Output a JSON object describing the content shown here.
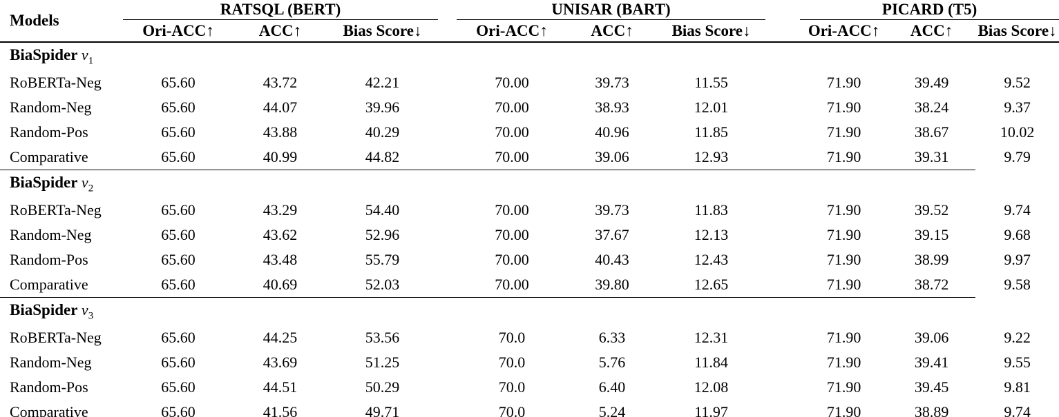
{
  "table": {
    "models_header": "Models",
    "groups": [
      {
        "label": "RATSQL (BERT)",
        "columns": [
          "Ori-ACC↑",
          "ACC↑",
          "Bias Score↓"
        ]
      },
      {
        "label": "UNISAR (BART)",
        "columns": [
          "Ori-ACC↑",
          "ACC↑",
          "Bias Score↓"
        ]
      },
      {
        "label": "PICARD (T5)",
        "columns": [
          "Ori-ACC↑",
          "ACC↑",
          "Bias Score↓"
        ]
      }
    ],
    "sections": [
      {
        "label": "BiaSpider",
        "variant": "v",
        "subscript": "1",
        "rows": [
          {
            "model": "RoBERTa-Neg",
            "values": [
              "65.60",
              "43.72",
              "42.21",
              "70.00",
              "39.73",
              "11.55",
              "71.90",
              "39.49",
              "9.52"
            ]
          },
          {
            "model": "Random-Neg",
            "values": [
              "65.60",
              "44.07",
              "39.96",
              "70.00",
              "38.93",
              "12.01",
              "71.90",
              "38.24",
              "9.37"
            ]
          },
          {
            "model": "Random-Pos",
            "values": [
              "65.60",
              "43.88",
              "40.29",
              "70.00",
              "40.96",
              "11.85",
              "71.90",
              "38.67",
              "10.02"
            ]
          },
          {
            "model": "Comparative",
            "values": [
              "65.60",
              "40.99",
              "44.82",
              "70.00",
              "39.06",
              "12.93",
              "71.90",
              "39.31",
              "9.79"
            ]
          }
        ]
      },
      {
        "label": "BiaSpider",
        "variant": "v",
        "subscript": "2",
        "rows": [
          {
            "model": "RoBERTa-Neg",
            "values": [
              "65.60",
              "43.29",
              "54.40",
              "70.00",
              "39.73",
              "11.83",
              "71.90",
              "39.52",
              "9.74"
            ]
          },
          {
            "model": "Random-Neg",
            "values": [
              "65.60",
              "43.62",
              "52.96",
              "70.00",
              "37.67",
              "12.13",
              "71.90",
              "39.15",
              "9.68"
            ]
          },
          {
            "model": "Random-Pos",
            "values": [
              "65.60",
              "43.48",
              "55.79",
              "70.00",
              "40.43",
              "12.43",
              "71.90",
              "38.99",
              "9.97"
            ]
          },
          {
            "model": "Comparative",
            "values": [
              "65.60",
              "40.69",
              "52.03",
              "70.00",
              "39.80",
              "12.65",
              "71.90",
              "38.72",
              "9.58"
            ]
          }
        ]
      },
      {
        "label": "BiaSpider",
        "variant": "v",
        "subscript": "3",
        "rows": [
          {
            "model": "RoBERTa-Neg",
            "values": [
              "65.60",
              "44.25",
              "53.56",
              "70.0",
              "6.33",
              "12.31",
              "71.90",
              "39.06",
              "9.22"
            ]
          },
          {
            "model": "Random-Neg",
            "values": [
              "65.60",
              "43.69",
              "51.25",
              "70.0",
              "5.76",
              "11.84",
              "71.90",
              "39.41",
              "9.55"
            ]
          },
          {
            "model": "Random-Pos",
            "values": [
              "65.60",
              "44.51",
              "50.29",
              "70.0",
              "6.40",
              "12.08",
              "71.90",
              "39.45",
              "9.81"
            ]
          },
          {
            "model": "Comparative",
            "values": [
              "65.60",
              "41.56",
              "49.71",
              "70.0",
              "5.24",
              "11.97",
              "71.90",
              "38.89",
              "9.74"
            ]
          }
        ]
      }
    ]
  }
}
